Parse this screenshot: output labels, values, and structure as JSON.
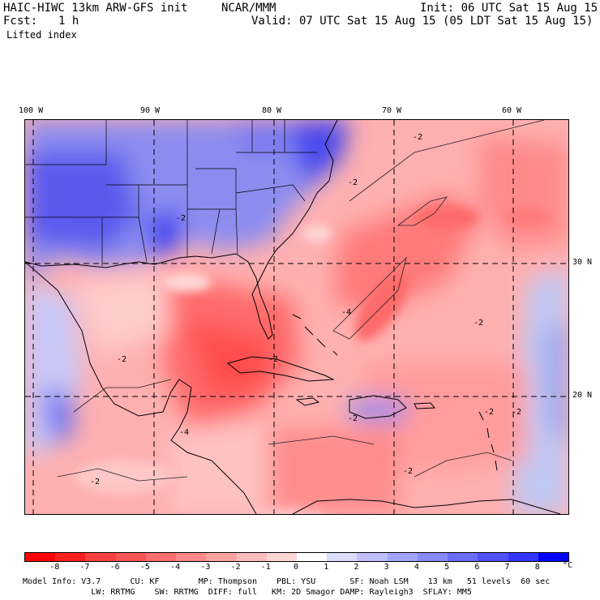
{
  "header": {
    "model_title": "HAIC-HIWC 13km ARW-GFS init",
    "org": "NCAR/MMM",
    "init_label": "Init: 06 UTC Sat 15 Aug 15",
    "fcst_label": "Fcst:",
    "fcst_value": "1 h",
    "valid_label": "Valid: 07 UTC Sat 15 Aug 15 (05 LDT Sat 15 Aug 15)",
    "field_name": "Lifted index"
  },
  "map": {
    "lon_labels": [
      "100 W",
      "90 W",
      "80 W",
      "70 W",
      "60 W"
    ],
    "lat_labels": [
      "30 N",
      "20 N"
    ],
    "contour_labels": [
      "-2",
      "-2",
      "-2",
      "-4",
      "-2",
      "-2",
      "-2",
      "-2",
      "-2",
      "-4",
      "-2",
      "-2",
      "-2",
      "0"
    ],
    "grid_color": "#000000"
  },
  "legend": {
    "labels": [
      "-8",
      "-7",
      "-6",
      "-5",
      "-4",
      "-3",
      "-2",
      "-1",
      "0",
      "1",
      "2",
      "3",
      "4",
      "5",
      "6",
      "7",
      "8"
    ],
    "unit": "°C",
    "colors": [
      "#ff0000",
      "#ff2020",
      "#ff4040",
      "#ff5555",
      "#ff6e6e",
      "#ff8888",
      "#ffa2a2",
      "#ffbcbc",
      "#ffd6d6",
      "#ffffff",
      "#dcdcff",
      "#c0c0ff",
      "#a4a4ff",
      "#8888ff",
      "#6c6cff",
      "#5050ff",
      "#3434ff",
      "#0000ff"
    ]
  },
  "footer": {
    "line1": "Model Info: V3.7      CU: KF        MP: Thompson    PBL: YSU       SF: Noah LSM    13 km   51 levels  60 sec",
    "line2": "              LW: RRTMG    SW: RRTMG  DIFF: full   KM: 2D Smagor DAMP: Rayleigh3  SFLAY: MM5"
  }
}
